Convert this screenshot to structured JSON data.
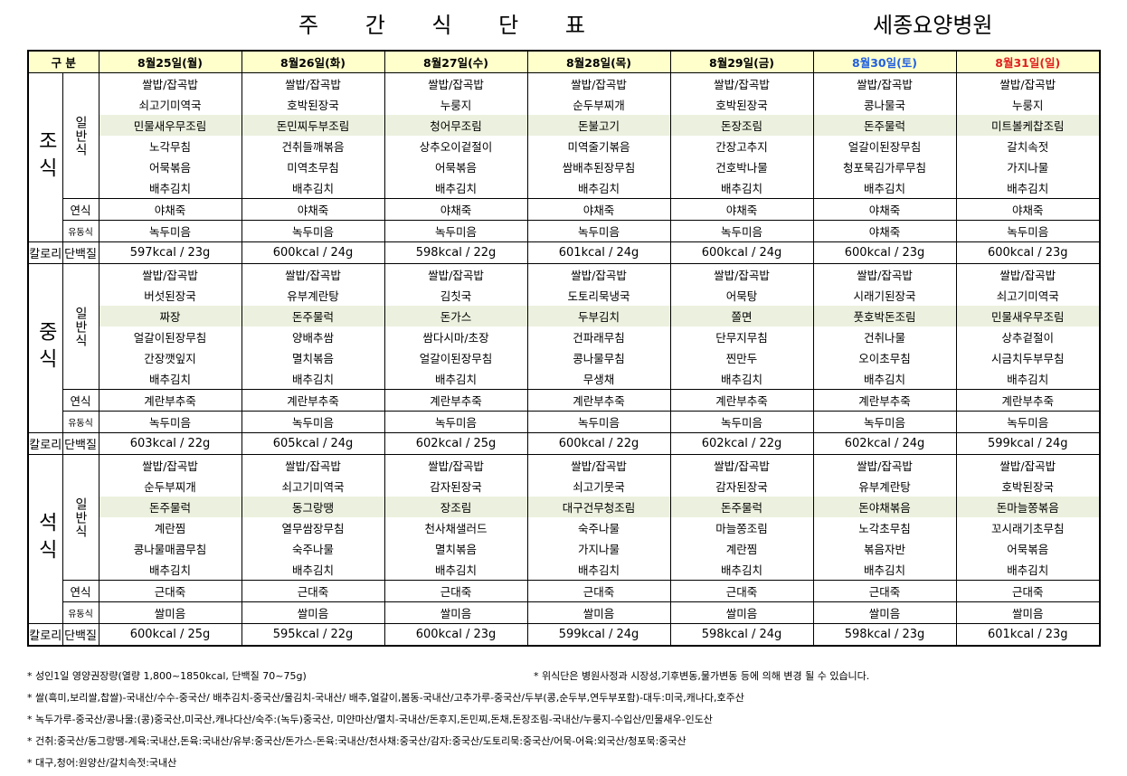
{
  "title": "주 간 식 단 표",
  "hospital": "세종요양병원",
  "table": {
    "header": [
      "구 분",
      "8월25일(월)",
      "8월26일(화)",
      "8월27일(수)",
      "8월28일(목)",
      "8월29일(금)",
      "8월30일(토)",
      "8월31일(일)"
    ],
    "meals": [
      {
        "name": "조식",
        "general_label": "일반식",
        "general": [
          [
            "쌀밥/잡곡밥",
            "쌀밥/잡곡밥",
            "쌀밥/잡곡밥",
            "쌀밥/잡곡밥",
            "쌀밥/잡곡밥",
            "쌀밥/잡곡밥",
            "쌀밥/잡곡밥"
          ],
          [
            "쇠고기미역국",
            "호박된장국",
            "누룽지",
            "순두부찌개",
            "호박된장국",
            "콩나물국",
            "누룽지"
          ],
          [
            "민물새우무조림",
            "돈민찌두부조림",
            "청어무조림",
            "돈불고기",
            "돈장조림",
            "돈주물럭",
            "미트볼케찹조림"
          ],
          [
            "노각무침",
            "건취들깨볶음",
            "상추오이겉절이",
            "미역줄기볶음",
            "간장고추지",
            "얼갈이된장무침",
            "갈치속젓"
          ],
          [
            "어묵볶음",
            "미역초무침",
            "어묵볶음",
            "쌈배추된장무침",
            "건호박나물",
            "청포묵김가루무침",
            "가지나물"
          ],
          [
            "배추김치",
            "배추김치",
            "배추김치",
            "배추김치",
            "배추김치",
            "배추김치",
            "배추김치"
          ]
        ],
        "soft_label": "연식",
        "soft": [
          "야채죽",
          "야채죽",
          "야채죽",
          "야채죽",
          "야채죽",
          "야채죽",
          "야채죽"
        ],
        "liquid_label": "유동식",
        "liquid": [
          "녹두미음",
          "녹두미음",
          "녹두미음",
          "녹두미음",
          "녹두미음",
          "야채죽",
          "녹두미음"
        ],
        "calorie_label": "칼로리",
        "protein_label": "단백질",
        "nutrition": [
          "597kcal  / 23g",
          "600kcal  / 24g",
          "598kcal  / 22g",
          "601kcal  / 24g",
          "600kcal  / 24g",
          "600kcal  / 23g",
          "600kcal  / 23g"
        ]
      },
      {
        "name": "중식",
        "general_label": "일반식",
        "general": [
          [
            "쌀밥/잡곡밥",
            "쌀밥/잡곡밥",
            "쌀밥/잡곡밥",
            "쌀밥/잡곡밥",
            "쌀밥/잡곡밥",
            "쌀밥/잡곡밥",
            "쌀밥/잡곡밥"
          ],
          [
            "버섯된장국",
            "유부계란탕",
            "김칫국",
            "도토리묵냉국",
            "어묵탕",
            "시래기된장국",
            "쇠고기미역국"
          ],
          [
            "짜장",
            "돈주물럭",
            "돈가스",
            "두부김치",
            "쫄면",
            "풋호박돈조림",
            "민물새우무조림"
          ],
          [
            "얼갈이된장무침",
            "양배추쌈",
            "쌈다시마/초장",
            "건파래무침",
            "단무지무침",
            "건취나물",
            "상추겉절이"
          ],
          [
            "간장깻잎지",
            "멸치볶음",
            "얼갈이된장무침",
            "콩나물무침",
            "찐만두",
            "오이초무침",
            "시금치두부무침"
          ],
          [
            "배추김치",
            "배추김치",
            "배추김치",
            "무생채",
            "배추김치",
            "배추김치",
            "배추김치"
          ]
        ],
        "soft_label": "연식",
        "soft": [
          "계란부추죽",
          "계란부추죽",
          "계란부추죽",
          "계란부추죽",
          "계란부추죽",
          "계란부추죽",
          "계란부추죽"
        ],
        "liquid_label": "유동식",
        "liquid": [
          "녹두미음",
          "녹두미음",
          "녹두미음",
          "녹두미음",
          "녹두미음",
          "녹두미음",
          "녹두미음"
        ],
        "calorie_label": "칼로리",
        "protein_label": "단백질",
        "nutrition": [
          "603kcal  / 22g",
          "605kcal  / 24g",
          "602kcal  / 25g",
          "600kcal  / 22g",
          "602kcal  / 22g",
          "602kcal  / 24g",
          "599kcal  / 24g"
        ]
      },
      {
        "name": "석식",
        "general_label": "일반식",
        "general": [
          [
            "쌀밥/잡곡밥",
            "쌀밥/잡곡밥",
            "쌀밥/잡곡밥",
            "쌀밥/잡곡밥",
            "쌀밥/잡곡밥",
            "쌀밥/잡곡밥",
            "쌀밥/잡곡밥"
          ],
          [
            "순두부찌개",
            "쇠고기미역국",
            "감자된장국",
            "쇠고기뭇국",
            "감자된장국",
            "유부계란탕",
            "호박된장국"
          ],
          [
            "돈주물럭",
            "동그랑땡",
            "장조림",
            "대구건무청조림",
            "돈주물럭",
            "돈야채볶음",
            "돈마늘쫑볶음"
          ],
          [
            "계란찜",
            "열무쌈장무침",
            "천사채샐러드",
            "숙주나물",
            "마늘쫑조림",
            "노각초무침",
            "꼬시래기초무침"
          ],
          [
            "콩나물매콤무침",
            "숙주나물",
            "멸치볶음",
            "가지나물",
            "계란찜",
            "볶음자반",
            "어묵볶음"
          ],
          [
            "배추김치",
            "배추김치",
            "배추김치",
            "배추김치",
            "배추김치",
            "배추김치",
            "배추김치"
          ]
        ],
        "soft_label": "연식",
        "soft": [
          "근대죽",
          "근대죽",
          "근대죽",
          "근대죽",
          "근대죽",
          "근대죽",
          "근대죽"
        ],
        "liquid_label": "유동식",
        "liquid": [
          "쌀미음",
          "쌀미음",
          "쌀미음",
          "쌀미음",
          "쌀미음",
          "쌀미음",
          "쌀미음"
        ],
        "calorie_label": "칼로리",
        "protein_label": "단백질",
        "nutrition": [
          "600kcal  / 25g",
          "595kcal  / 22g",
          "600kcal  / 23g",
          "599kcal  / 24g",
          "598kcal  / 24g",
          "598kcal  / 23g",
          "601kcal  / 23g"
        ]
      }
    ]
  },
  "notes": {
    "recommended": "* 성인1일 영양권장량(열량 1,800~1850kcal, 단백질 70~75g)",
    "disclaimer": "* 위식단은 병원사정과 시장성,기후변동,물가변동 등에 의해 변경 될 수 있습니다.",
    "origins": [
      "* 쌀(흑미,보리쌀,찹쌀)-국내산/수수-중국산/ 배추김치-중국산/물김치-국내산/ 배추,얼갈이,봄동-국내산/고추가루-중국산/두부(콩,순두부,연두부포함)-대두:미국,캐나다,호주산",
      "* 녹두가루-중국산/콩나물:(콩)중국산,미국산,캐나다산/숙주:(녹두)중국산, 미얀마산/멸치-국내산/돈후지,돈민찌,돈채,돈장조림-국내산/누룽지-수입산/민물새우-인도산",
      "* 건취:중국산/동그랑땡-계육:국내산,돈육:국내산/유부:중국산/돈가스-돈육:국내산/천사채:중국산/감자:중국산/도토리묵:중국산/어묵-어육:외국산/청포묵:중국산",
      "* 대구,청어:원양산/갈치속젓:국내산"
    ]
  }
}
